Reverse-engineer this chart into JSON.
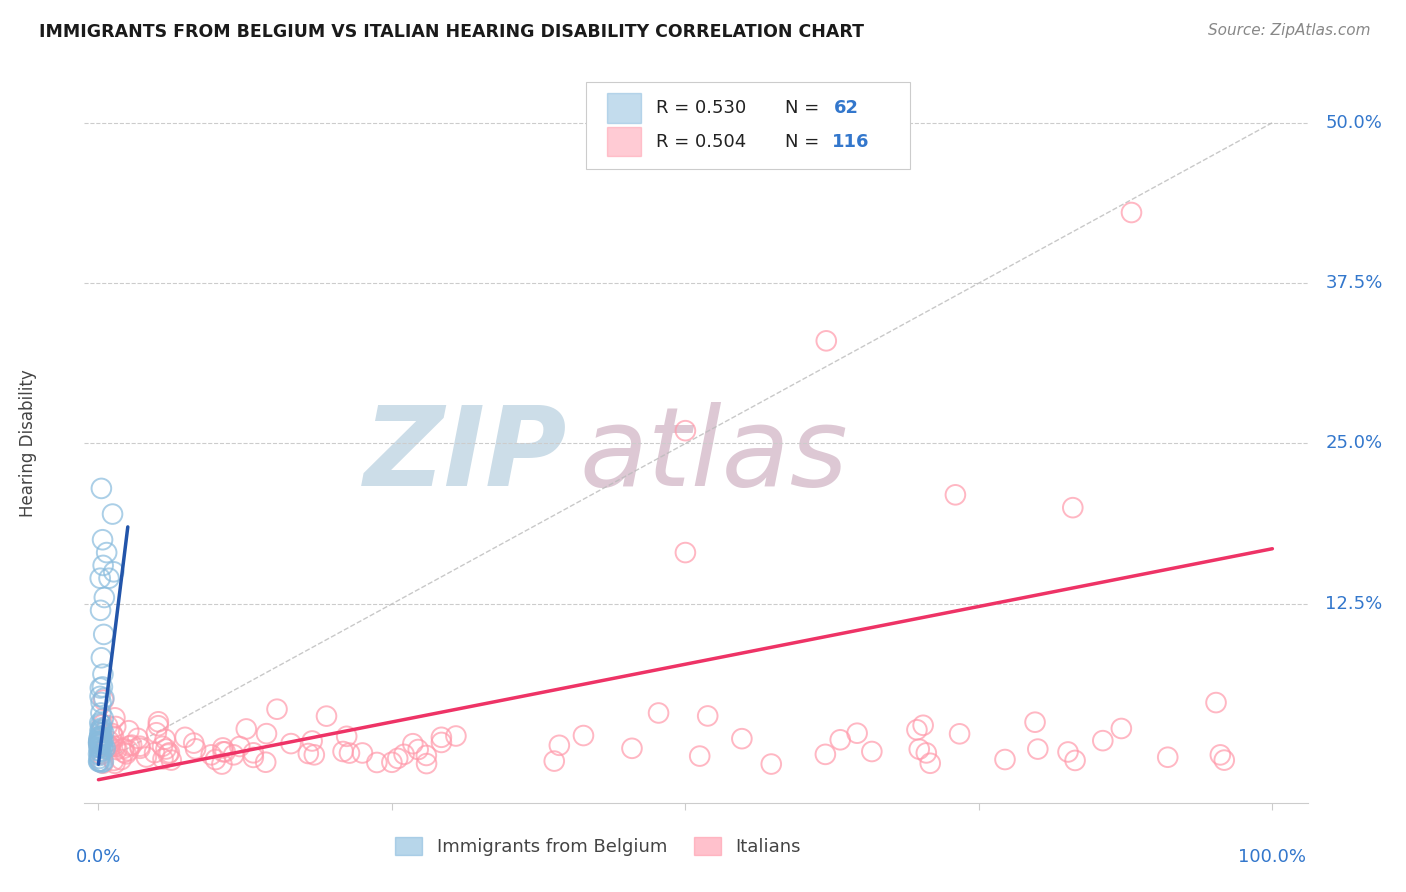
{
  "title": "IMMIGRANTS FROM BELGIUM VS ITALIAN HEARING DISABILITY CORRELATION CHART",
  "source": "Source: ZipAtlas.com",
  "ylabel": "Hearing Disability",
  "ytick_vals": [
    0.0,
    0.125,
    0.25,
    0.375,
    0.5
  ],
  "ytick_labels": [
    "",
    "12.5%",
    "25.0%",
    "37.5%",
    "50.0%"
  ],
  "watermark_zip_color": "#ccdde8",
  "watermark_atlas_color": "#ddc8d4",
  "blue_scatter_color": "#88bbdd",
  "pink_scatter_color": "#ff99aa",
  "blue_line_color": "#2255aa",
  "pink_line_color": "#ee3366",
  "axis_label_color": "#3377cc",
  "background_color": "#ffffff",
  "grid_color": "#cccccc",
  "legend_text_color": "#3377cc",
  "legend_r_color": "#222222",
  "bottom_legend_color": "#444444"
}
